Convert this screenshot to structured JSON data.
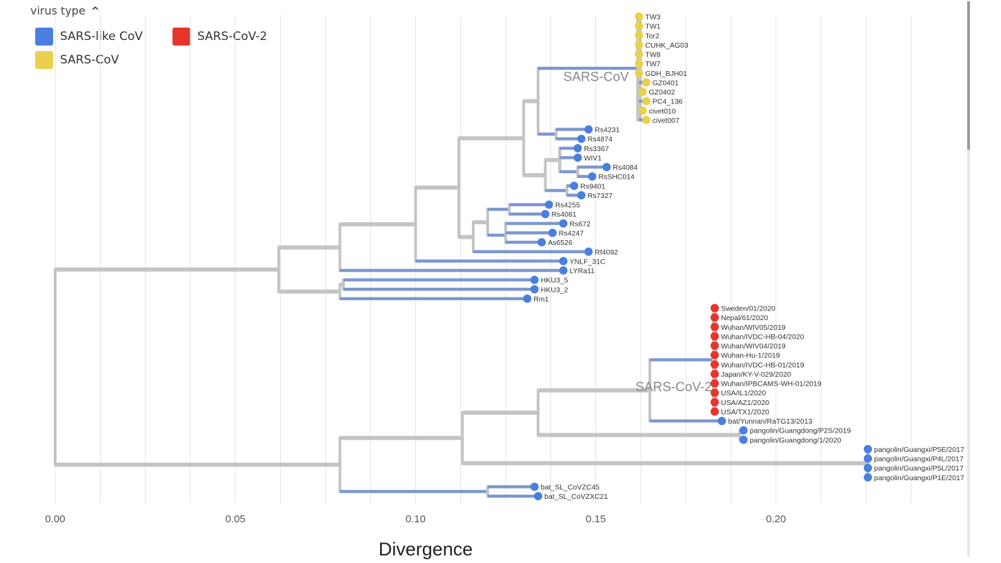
{
  "legend": {
    "title": "virus type",
    "toggle_icon": "chevron-up-icon",
    "items": [
      {
        "label": "SARS-like CoV",
        "color": "#4a7fe0"
      },
      {
        "label": "SARS-CoV",
        "color": "#ead14d"
      },
      {
        "label": "SARS-CoV-2",
        "color": "#e8352b"
      }
    ]
  },
  "colors": {
    "branch": "#c4c4c4",
    "branch_colored": "#7d97cf",
    "grid": "#e3e3e3"
  },
  "chart_data": {
    "type": "phylogenetic-tree",
    "xlabel": "Divergence",
    "xlim": [
      0,
      0.25
    ],
    "xticks": [
      {
        "value": 0.0,
        "label": "0.00"
      },
      {
        "value": 0.05,
        "label": "0.05"
      },
      {
        "value": 0.1,
        "label": "0.10"
      },
      {
        "value": 0.15,
        "label": "0.15"
      },
      {
        "value": 0.2,
        "label": "0.20"
      }
    ],
    "clade_labels": [
      {
        "text": "SARS-CoV",
        "x": 0.141,
        "leaf_row": 7
      },
      {
        "text": "SARS-CoV-2",
        "x": 0.161,
        "leaf_row": 40
      }
    ],
    "tree": {
      "x": 0.0,
      "children": [
        {
          "x": 0.062,
          "children": [
            {
              "x": 0.079,
              "children": [
                {
                  "x": 0.1,
                  "children": [
                    {
                      "x": 0.112,
                      "children": [
                        {
                          "x": 0.13,
                          "children": [
                            {
                              "x": 0.134,
                              "children": [
                                {
                                  "x": 0.162,
                                  "t": "S",
                                  "children": [
                                    {
                                      "name": "TW3",
                                      "x": 0.162,
                                      "t": "S"
                                    },
                                    {
                                      "name": "TW1",
                                      "x": 0.162,
                                      "t": "S"
                                    },
                                    {
                                      "name": "Tor2",
                                      "x": 0.162,
                                      "t": "S"
                                    },
                                    {
                                      "name": "CUHK_AG03",
                                      "x": 0.162,
                                      "t": "S"
                                    },
                                    {
                                      "name": "TW8",
                                      "x": 0.162,
                                      "t": "S"
                                    },
                                    {
                                      "name": "TW7",
                                      "x": 0.162,
                                      "t": "S"
                                    },
                                    {
                                      "name": "GDH_BJH01",
                                      "x": 0.162,
                                      "t": "S"
                                    },
                                    {
                                      "name": "GZ0401",
                                      "x": 0.164,
                                      "t": "S"
                                    },
                                    {
                                      "name": "GZ0402",
                                      "x": 0.163,
                                      "t": "S"
                                    },
                                    {
                                      "name": "PC4_136",
                                      "x": 0.164,
                                      "t": "S"
                                    },
                                    {
                                      "name": "civet010",
                                      "x": 0.163,
                                      "t": "S"
                                    },
                                    {
                                      "name": "civet007",
                                      "x": 0.164,
                                      "t": "S"
                                    }
                                  ]
                                },
                                {
                                  "x": 0.139,
                                  "t": "L",
                                  "children": [
                                    {
                                      "name": "Rs4231",
                                      "x": 0.148,
                                      "t": "L"
                                    },
                                    {
                                      "name": "Rs4874",
                                      "x": 0.146,
                                      "t": "L"
                                    }
                                  ]
                                }
                              ]
                            },
                            {
                              "x": 0.136,
                              "children": [
                                {
                                  "x": 0.14,
                                  "children": [
                                    {
                                      "name": "Rs3367",
                                      "x": 0.145,
                                      "t": "L"
                                    },
                                    {
                                      "name": "WIV1",
                                      "x": 0.145,
                                      "t": "L"
                                    },
                                    {
                                      "x": 0.145,
                                      "t": "L",
                                      "children": [
                                        {
                                          "name": "Rs4084",
                                          "x": 0.153,
                                          "t": "L"
                                        },
                                        {
                                          "name": "RsSHC014",
                                          "x": 0.149,
                                          "t": "L"
                                        }
                                      ]
                                    }
                                  ]
                                },
                                {
                                  "x": 0.142,
                                  "t": "L",
                                  "children": [
                                    {
                                      "name": "Rs9401",
                                      "x": 0.144,
                                      "t": "L"
                                    },
                                    {
                                      "name": "Rs7327",
                                      "x": 0.146,
                                      "t": "L"
                                    }
                                  ]
                                }
                              ]
                            }
                          ]
                        },
                        {
                          "x": 0.116,
                          "children": [
                            {
                              "x": 0.12,
                              "children": [
                                {
                                  "x": 0.126,
                                  "t": "L",
                                  "children": [
                                    {
                                      "name": "Rs4255",
                                      "x": 0.137,
                                      "t": "L"
                                    },
                                    {
                                      "name": "Rs4081",
                                      "x": 0.136,
                                      "t": "L"
                                    }
                                  ]
                                },
                                {
                                  "x": 0.125,
                                  "t": "L",
                                  "children": [
                                    {
                                      "x": 0.125,
                                      "t": "L",
                                      "children": [
                                        {
                                          "name": "Rs672",
                                          "x": 0.141,
                                          "t": "L"
                                        },
                                        {
                                          "name": "Rs4247",
                                          "x": 0.138,
                                          "t": "L"
                                        }
                                      ]
                                    },
                                    {
                                      "name": "As6526",
                                      "x": 0.135,
                                      "t": "L"
                                    }
                                  ]
                                }
                              ]
                            },
                            {
                              "name": "Rf4092",
                              "x": 0.148,
                              "t": "L"
                            }
                          ]
                        }
                      ]
                    },
                    {
                      "name": "YNLF_31C",
                      "x": 0.141,
                      "t": "L"
                    }
                  ]
                },
                {
                  "name": "LYRa11",
                  "x": 0.141,
                  "t": "L"
                }
              ]
            },
            {
              "x": 0.079,
              "children": [
                {
                  "x": 0.08,
                  "children": [
                    {
                      "name": "HKU3_5",
                      "x": 0.133,
                      "t": "L"
                    },
                    {
                      "name": "HKU3_2",
                      "x": 0.133,
                      "t": "L"
                    }
                  ]
                },
                {
                  "name": "Rm1",
                  "x": 0.131,
                  "t": "L"
                }
              ]
            }
          ]
        },
        {
          "x": 0.079,
          "children": [
            {
              "x": 0.113,
              "children": [
                {
                  "x": 0.134,
                  "children": [
                    {
                      "x": 0.165,
                      "children": [
                        {
                          "x": 0.183,
                          "t": "C",
                          "children": [
                            {
                              "name": "Sweden/01/2020",
                              "x": 0.183,
                              "t": "C"
                            },
                            {
                              "name": "Nepal/61/2020",
                              "x": 0.183,
                              "t": "C"
                            },
                            {
                              "name": "Wuhan/WIV05/2019",
                              "x": 0.183,
                              "t": "C"
                            },
                            {
                              "name": "Wuhan/IVDC-HB-04/2020",
                              "x": 0.183,
                              "t": "C"
                            },
                            {
                              "name": "Wuhan/WIV04/2019",
                              "x": 0.183,
                              "t": "C"
                            },
                            {
                              "name": "Wuhan-Hu-1/2019",
                              "x": 0.183,
                              "t": "C"
                            },
                            {
                              "name": "Wuhan/IVDC-HB-01/2019",
                              "x": 0.183,
                              "t": "C"
                            },
                            {
                              "name": "Japan/KY-V-029/2020",
                              "x": 0.183,
                              "t": "C"
                            },
                            {
                              "name": "Wuhan/IPBCAMS-WH-01/2019",
                              "x": 0.183,
                              "t": "C"
                            },
                            {
                              "name": "USA/IL1/2020",
                              "x": 0.183,
                              "t": "C"
                            },
                            {
                              "name": "USA/AZ1/2020",
                              "x": 0.183,
                              "t": "C"
                            },
                            {
                              "name": "USA/TX1/2020",
                              "x": 0.183,
                              "t": "C"
                            }
                          ]
                        },
                        {
                          "name": "bat/Yunnan/RaTG13/2013",
                          "x": 0.185,
                          "t": "L"
                        }
                      ]
                    },
                    {
                      "x": 0.19,
                      "children": [
                        {
                          "name": "pangolin/Guangdong/P2S/2019",
                          "x": 0.191,
                          "t": "L"
                        },
                        {
                          "name": "pangolin/Guangdong/1/2020",
                          "x": 0.191,
                          "t": "L"
                        }
                      ]
                    }
                  ]
                },
                {
                  "x": 0.2255,
                  "children": [
                    {
                      "name": "pangolin/Guangxi/P5E/2017",
                      "x": 0.2255,
                      "t": "L"
                    },
                    {
                      "name": "pangolin/Guangxi/P4L/2017",
                      "x": 0.2255,
                      "t": "L"
                    },
                    {
                      "name": "pangolin/Guangxi/P5L/2017",
                      "x": 0.2255,
                      "t": "L"
                    },
                    {
                      "name": "pangolin/Guangxi/P1E/2017",
                      "x": 0.2255,
                      "t": "L"
                    }
                  ]
                }
              ]
            },
            {
              "x": 0.12,
              "t": "L",
              "children": [
                {
                  "name": "bat_SL_CoVZC45",
                  "x": 0.133,
                  "t": "L"
                },
                {
                  "name": "bat_SL_CoVZXC21",
                  "x": 0.134,
                  "t": "L"
                }
              ]
            }
          ]
        }
      ]
    }
  }
}
